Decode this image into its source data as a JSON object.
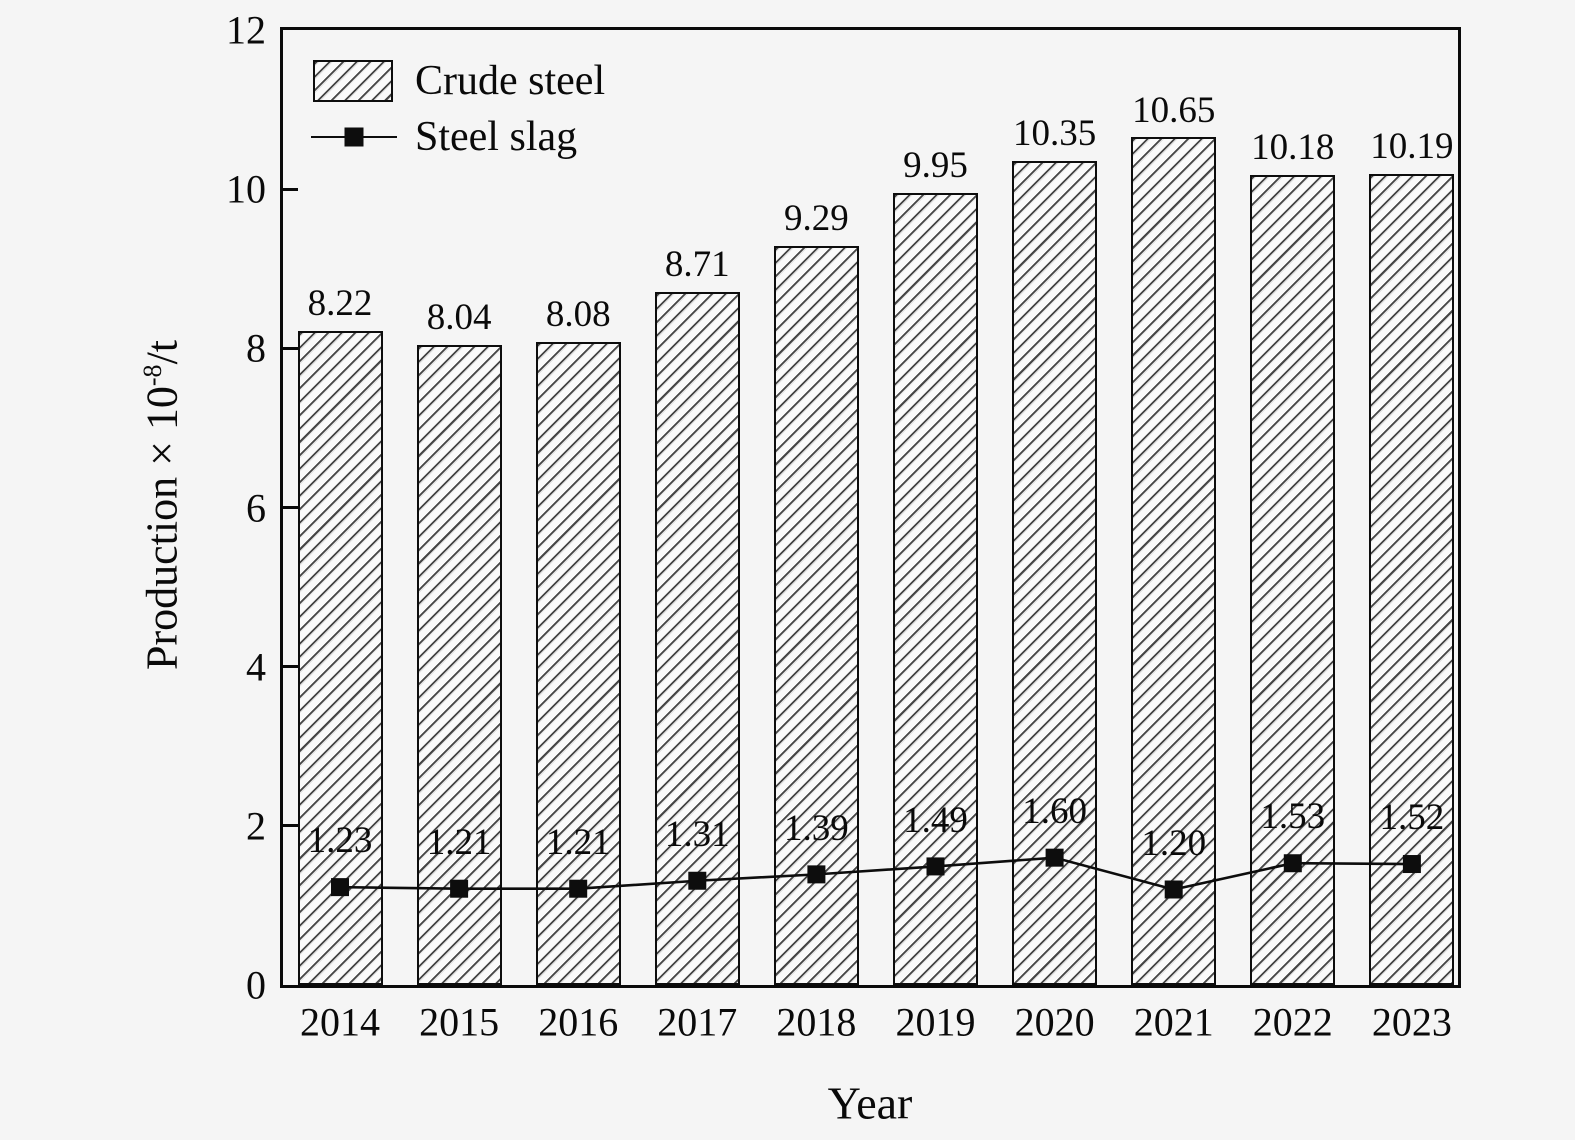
{
  "figure": {
    "xlabel": "Year",
    "ylabel": {
      "base": "Production × 10",
      "sup": "-8",
      "suffix": "/t"
    },
    "legend": {
      "crude_steel": "Crude steel",
      "steel_slag": "Steel slag"
    }
  },
  "chart_data": {
    "type": "bar",
    "categories": [
      "2014",
      "2015",
      "2016",
      "2017",
      "2018",
      "2019",
      "2020",
      "2021",
      "2022",
      "2023"
    ],
    "series": [
      {
        "name": "Crude steel",
        "type": "bar",
        "values": [
          8.22,
          8.04,
          8.08,
          8.71,
          9.29,
          9.95,
          10.35,
          10.65,
          10.18,
          10.19
        ]
      },
      {
        "name": "Steel slag",
        "type": "line",
        "values": [
          1.23,
          1.21,
          1.21,
          1.31,
          1.39,
          1.49,
          1.6,
          1.2,
          1.53,
          1.52
        ]
      }
    ],
    "title": "",
    "xlabel": "Year",
    "ylabel": "Production × 10^-8/t",
    "ylim": [
      0,
      12
    ],
    "yticks": [
      0,
      2,
      4,
      6,
      8,
      10,
      12
    ],
    "grid": false,
    "legend_position": "top-left",
    "bar_style": "diagonal-hatch",
    "marker": "filled-square",
    "colors": {
      "bar_fill": "#fafafa",
      "hatch": "#1e1e1e",
      "line": "#0d0d0d",
      "text": "#0a0a0a",
      "background": "#f5f5f5"
    }
  }
}
